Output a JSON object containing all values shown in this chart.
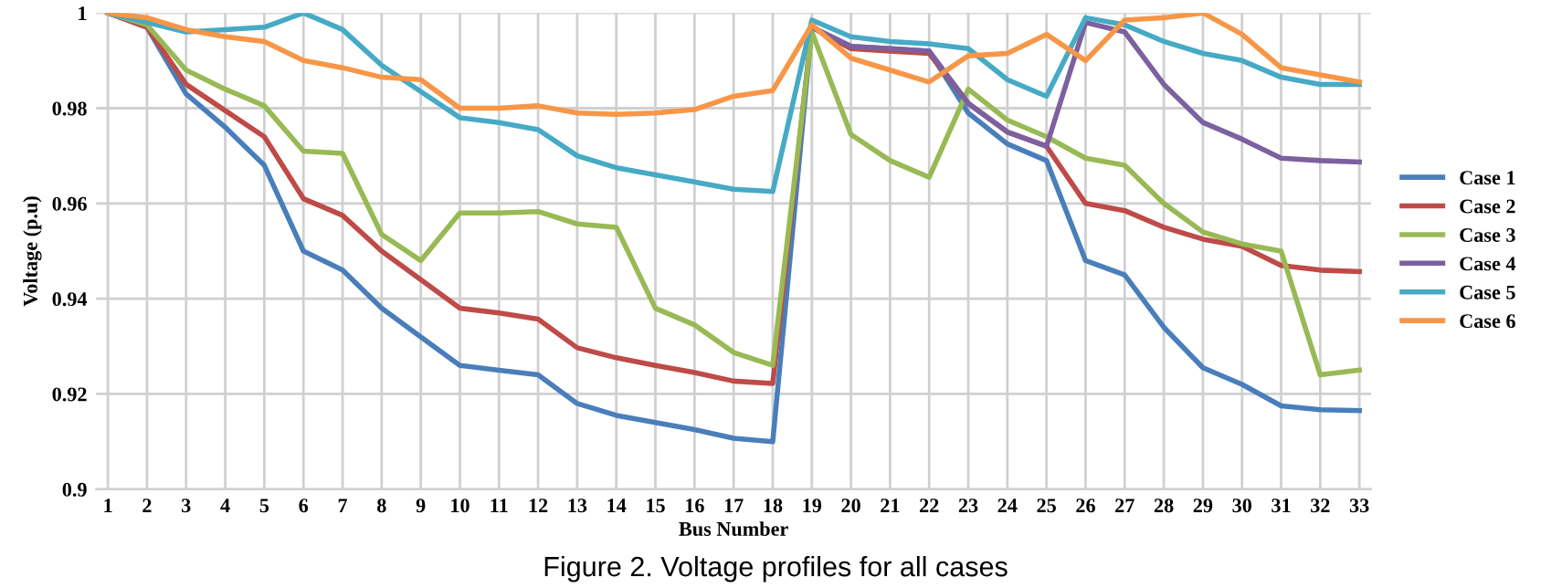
{
  "chart_data": {
    "type": "line",
    "xlabel": "Bus Number",
    "ylabel": "Voltage (p.u)",
    "categories": [
      "1",
      "2",
      "3",
      "4",
      "5",
      "6",
      "7",
      "8",
      "9",
      "10",
      "11",
      "12",
      "13",
      "14",
      "15",
      "16",
      "17",
      "18",
      "19",
      "20",
      "21",
      "22",
      "23",
      "24",
      "25",
      "26",
      "27",
      "28",
      "29",
      "30",
      "31",
      "32",
      "33"
    ],
    "series": [
      {
        "name": "Case 1",
        "color": "#4a7ebb",
        "values": [
          1.0,
          0.997,
          0.983,
          0.976,
          0.968,
          0.95,
          0.946,
          0.938,
          0.932,
          0.926,
          0.925,
          0.924,
          0.918,
          0.9155,
          0.914,
          0.9125,
          0.9107,
          0.91,
          0.997,
          0.993,
          0.9925,
          0.992,
          0.979,
          0.9725,
          0.969,
          0.948,
          0.945,
          0.934,
          0.9255,
          0.922,
          0.9175,
          0.9167,
          0.9165
        ]
      },
      {
        "name": "Case 2",
        "color": "#be4b48",
        "values": [
          1.0,
          0.997,
          0.985,
          0.9795,
          0.974,
          0.961,
          0.9575,
          0.95,
          0.944,
          0.938,
          0.937,
          0.9357,
          0.9297,
          0.9276,
          0.926,
          0.9245,
          0.9227,
          0.9222,
          0.997,
          0.9925,
          0.992,
          0.9915,
          0.981,
          0.975,
          0.972,
          0.96,
          0.9585,
          0.955,
          0.9525,
          0.951,
          0.947,
          0.946,
          0.9457
        ]
      },
      {
        "name": "Case 3",
        "color": "#98b954",
        "values": [
          1.0,
          0.9975,
          0.988,
          0.984,
          0.9805,
          0.971,
          0.9705,
          0.9535,
          0.948,
          0.958,
          0.958,
          0.9583,
          0.9557,
          0.955,
          0.938,
          0.9345,
          0.9287,
          0.926,
          0.996,
          0.9745,
          0.969,
          0.9655,
          0.984,
          0.9775,
          0.974,
          0.9695,
          0.968,
          0.96,
          0.954,
          0.9515,
          0.95,
          0.924,
          0.925
        ]
      },
      {
        "name": "Case 4",
        "color": "#7d60a0",
        "values": [
          null,
          null,
          null,
          null,
          null,
          null,
          null,
          null,
          null,
          null,
          null,
          null,
          null,
          null,
          null,
          null,
          null,
          null,
          0.997,
          0.993,
          0.9925,
          0.992,
          0.981,
          0.975,
          0.972,
          0.998,
          0.996,
          0.985,
          0.977,
          0.9735,
          0.9695,
          0.969,
          0.9687
        ]
      },
      {
        "name": "Case 5",
        "color": "#46aac5",
        "values": [
          1.0,
          0.998,
          0.996,
          0.9965,
          0.997,
          1.0,
          0.9965,
          0.989,
          0.9835,
          0.978,
          0.977,
          0.9755,
          0.97,
          0.9675,
          0.966,
          0.9645,
          0.963,
          0.9625,
          0.9985,
          0.995,
          0.994,
          0.9935,
          0.9925,
          0.986,
          0.9825,
          0.999,
          0.9975,
          0.994,
          0.9915,
          0.99,
          0.9865,
          0.985,
          0.985
        ]
      },
      {
        "name": "Case 6",
        "color": "#f79646",
        "values": [
          1.0,
          0.999,
          0.9965,
          0.995,
          0.994,
          0.99,
          0.9885,
          0.9865,
          0.986,
          0.98,
          0.98,
          0.9805,
          0.979,
          0.9787,
          0.979,
          0.9797,
          0.9825,
          0.9837,
          0.9975,
          0.9905,
          0.988,
          0.9855,
          0.991,
          0.9915,
          0.9955,
          0.99,
          0.9985,
          0.999,
          1.0,
          0.9955,
          0.9885,
          0.987,
          0.9855
        ]
      }
    ],
    "ylim": [
      0.9,
      1.0
    ],
    "yticks": [
      0.9,
      0.92,
      0.94,
      0.96,
      0.98,
      1
    ],
    "grid": true,
    "legend": "right",
    "line_style": "solid",
    "marker": "none",
    "annotations": [
      "Figure 2. Voltage profiles for all cases"
    ]
  }
}
